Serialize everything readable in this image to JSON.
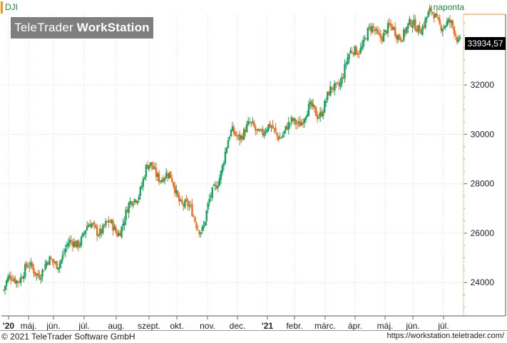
{
  "header": {
    "symbol": "DJI",
    "interval": "naponta",
    "brand_light": "TeleTrader ",
    "brand_bold": "WorkStation"
  },
  "last_price_label": "33934,57",
  "footer": {
    "copyright": "© 2021  TeleTrader Software GmbH",
    "url": "https://workstation.teletrader.com/"
  },
  "colors": {
    "up": "#19a15f",
    "down": "#f26b1d",
    "grid": "#d9d9d9",
    "price_axis_line": "#f7931e",
    "symbol_marker": "#f7931e"
  },
  "chart_data": {
    "type": "candlestick",
    "title": "DJI",
    "interval": "naponta",
    "y_ticks": [
      24000,
      26000,
      28000,
      30000,
      32000
    ],
    "y_tick_labels": [
      "24000",
      "26000",
      "28000",
      "30000",
      "32000"
    ],
    "ylim": [
      22650,
      34860
    ],
    "x_tick_labels": [
      "'20",
      "máj.",
      "jún.",
      "júl.",
      "aug.",
      "szept.",
      "okt.",
      "nov.",
      "dec.",
      "'21",
      "febr.",
      "márc.",
      "ápr.",
      "máj.",
      "jún.",
      "júl."
    ],
    "x_range": [
      "2020-04-13",
      "2021-07-20"
    ],
    "monthly_closes": [
      {
        "month": "2020-04",
        "close": 24300
      },
      {
        "month": "2020-05",
        "close": 25380
      },
      {
        "month": "2020-06",
        "close": 25810
      },
      {
        "month": "2020-07",
        "close": 26430
      },
      {
        "month": "2020-08",
        "close": 28430
      },
      {
        "month": "2020-09",
        "close": 27780
      },
      {
        "month": "2020-10",
        "close": 26500
      },
      {
        "month": "2020-11",
        "close": 29640
      },
      {
        "month": "2020-12",
        "close": 30600
      },
      {
        "month": "2021-01",
        "close": 29980
      },
      {
        "month": "2021-02",
        "close": 30930
      },
      {
        "month": "2021-03",
        "close": 32980
      },
      {
        "month": "2021-04",
        "close": 33870
      },
      {
        "month": "2021-05",
        "close": 34530
      },
      {
        "month": "2021-06",
        "close": 34500
      },
      {
        "month": "2021-07",
        "close": 33934.57
      }
    ],
    "last_value": 33934.57,
    "grid": true,
    "price_axis": "right"
  }
}
